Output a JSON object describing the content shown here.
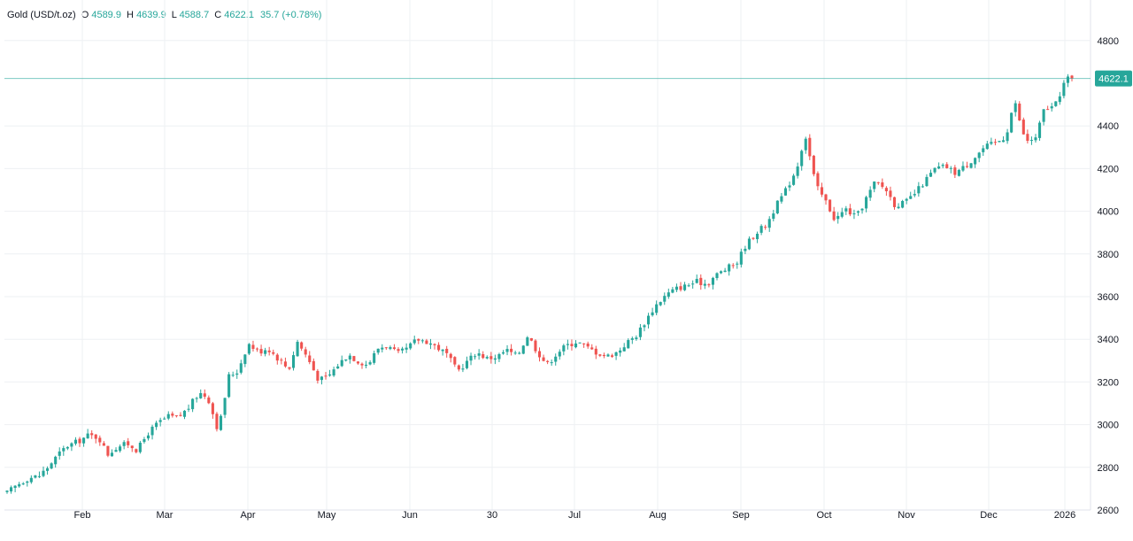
{
  "legend": {
    "symbol": "Gold (USD/t.oz)",
    "open_label": "O",
    "open": "4589.9",
    "high_label": "H",
    "high": "4639.9",
    "low_label": "L",
    "low": "4588.7",
    "close_label": "C",
    "close": "4622.1",
    "change": "35.7",
    "change_pct": "(+0.78%)"
  },
  "chart_data": {
    "type": "candlestick",
    "title": "Gold (USD/t.oz)",
    "ylim": [
      2600,
      4900
    ],
    "yticks": [
      2600,
      2800,
      3000,
      3200,
      3400,
      3600,
      3800,
      4000,
      4200,
      4400,
      4800
    ],
    "x_labels": [
      "Feb",
      "Mar",
      "Apr",
      "May",
      "Jun",
      "30",
      "Jul",
      "Aug",
      "Sep",
      "Oct",
      "Nov",
      "Dec",
      "2026"
    ],
    "last_price": 4622.1,
    "last_price_label": "4622.1",
    "grid": true,
    "colors": {
      "up": "#26a69a",
      "down": "#ef5350",
      "grid": "#eef0f3",
      "axis_text": "#131722",
      "price_line": "#26a69a"
    },
    "close_path": [
      [
        0,
        2680
      ],
      [
        5,
        2720
      ],
      [
        10,
        2750
      ],
      [
        15,
        2760
      ],
      [
        19,
        2800
      ],
      [
        24,
        2860
      ],
      [
        28,
        2900
      ],
      [
        33,
        2920
      ],
      [
        38,
        2950
      ],
      [
        43,
        2940
      ],
      [
        47,
        2860
      ],
      [
        52,
        2900
      ],
      [
        57,
        2910
      ],
      [
        61,
        2880
      ],
      [
        66,
        2960
      ],
      [
        71,
        3010
      ],
      [
        76,
        3040
      ],
      [
        80,
        3030
      ],
      [
        85,
        3080
      ],
      [
        90,
        3150
      ],
      [
        94,
        3130
      ],
      [
        99,
        2970
      ],
      [
        104,
        3230
      ],
      [
        108,
        3250
      ],
      [
        113,
        3380
      ],
      [
        118,
        3340
      ],
      [
        122,
        3360
      ],
      [
        127,
        3310
      ],
      [
        132,
        3260
      ],
      [
        136,
        3390
      ],
      [
        141,
        3310
      ],
      [
        146,
        3210
      ],
      [
        150,
        3220
      ],
      [
        155,
        3280
      ],
      [
        160,
        3330
      ],
      [
        164,
        3300
      ],
      [
        169,
        3280
      ],
      [
        174,
        3360
      ],
      [
        178,
        3370
      ],
      [
        183,
        3330
      ],
      [
        188,
        3360
      ],
      [
        192,
        3400
      ],
      [
        197,
        3390
      ],
      [
        202,
        3360
      ],
      [
        206,
        3330
      ],
      [
        211,
        3250
      ],
      [
        216,
        3300
      ],
      [
        220,
        3340
      ],
      [
        225,
        3310
      ],
      [
        230,
        3320
      ],
      [
        234,
        3350
      ],
      [
        239,
        3320
      ],
      [
        244,
        3420
      ],
      [
        248,
        3350
      ],
      [
        253,
        3280
      ],
      [
        258,
        3340
      ],
      [
        262,
        3370
      ],
      [
        267,
        3390
      ],
      [
        272,
        3360
      ],
      [
        276,
        3340
      ],
      [
        281,
        3320
      ],
      [
        286,
        3340
      ],
      [
        290,
        3380
      ],
      [
        295,
        3420
      ],
      [
        300,
        3500
      ],
      [
        304,
        3560
      ],
      [
        309,
        3610
      ],
      [
        314,
        3640
      ],
      [
        318,
        3650
      ],
      [
        323,
        3670
      ],
      [
        328,
        3660
      ],
      [
        332,
        3700
      ],
      [
        337,
        3730
      ],
      [
        342,
        3760
      ],
      [
        346,
        3840
      ],
      [
        351,
        3900
      ],
      [
        356,
        3940
      ],
      [
        360,
        4020
      ],
      [
        365,
        4100
      ],
      [
        370,
        4200
      ],
      [
        374,
        4360
      ],
      [
        379,
        4120
      ],
      [
        384,
        4040
      ],
      [
        388,
        3960
      ],
      [
        393,
        4010
      ],
      [
        398,
        3970
      ],
      [
        402,
        4050
      ],
      [
        407,
        4140
      ],
      [
        412,
        4100
      ],
      [
        416,
        4030
      ],
      [
        421,
        4040
      ],
      [
        426,
        4090
      ],
      [
        430,
        4140
      ],
      [
        435,
        4200
      ],
      [
        440,
        4210
      ],
      [
        444,
        4180
      ],
      [
        449,
        4210
      ],
      [
        454,
        4260
      ],
      [
        458,
        4300
      ],
      [
        463,
        4320
      ],
      [
        468,
        4350
      ],
      [
        472,
        4520
      ],
      [
        477,
        4330
      ],
      [
        482,
        4340
      ],
      [
        486,
        4480
      ],
      [
        491,
        4490
      ],
      [
        496,
        4620
      ],
      [
        499,
        4622.1
      ]
    ]
  }
}
